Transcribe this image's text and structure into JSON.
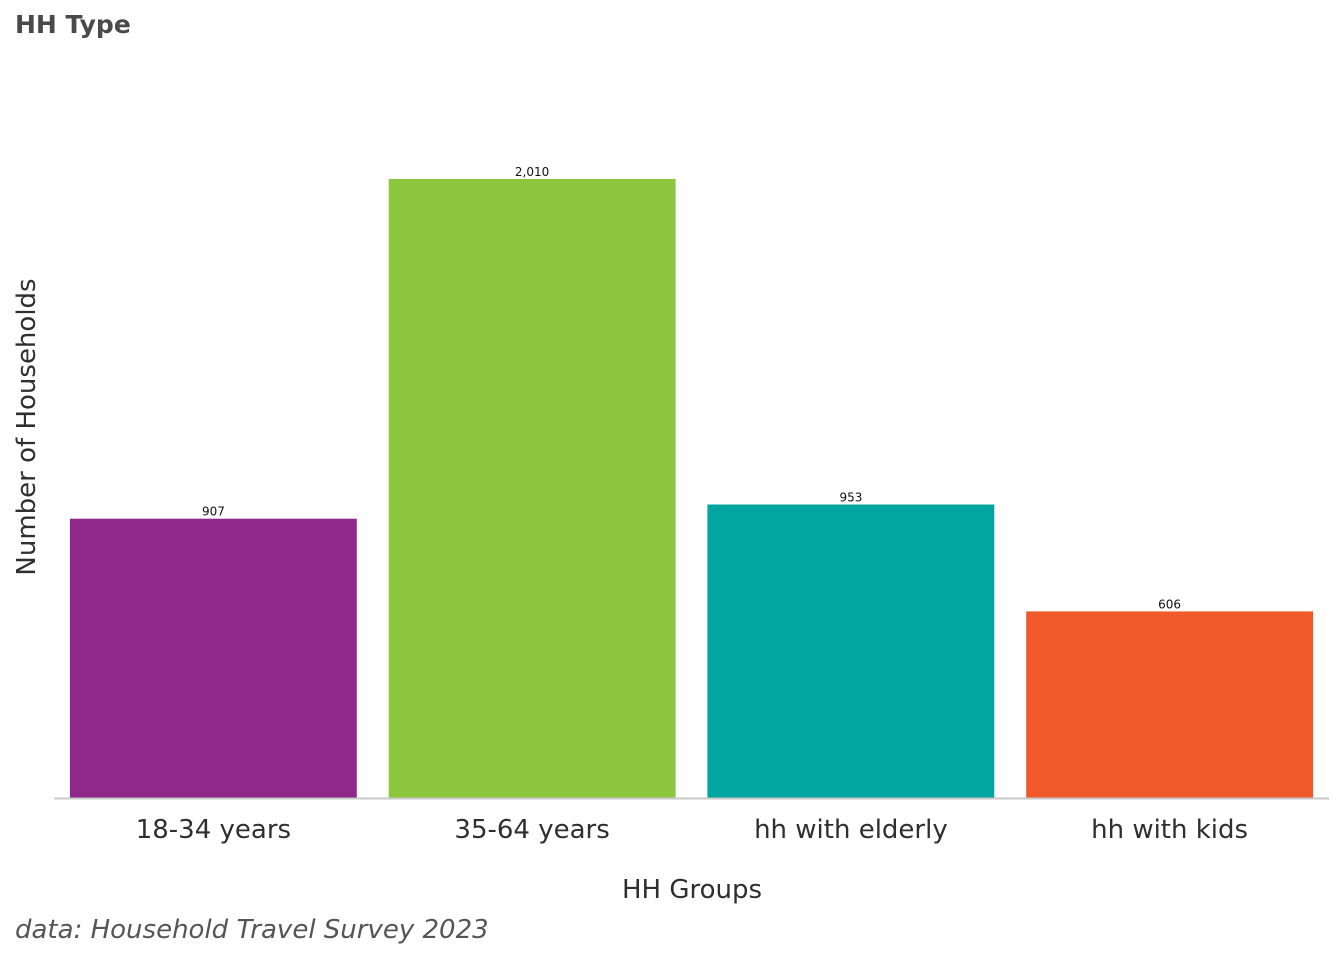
{
  "chart_data": {
    "type": "bar",
    "title": "HH Type",
    "xlabel": "HH Groups",
    "ylabel": "Number of Households",
    "categories": [
      "18-34 years",
      "35-64 years",
      "hh with elderly",
      "hh with kids"
    ],
    "values": [
      907,
      2010,
      953,
      606
    ],
    "value_labels": [
      "907",
      "2,010",
      "953",
      "606"
    ],
    "colors": [
      "#90278b",
      "#8dc63f",
      "#00a69f",
      "#f05a2b"
    ],
    "ylim": [
      0,
      2010
    ],
    "grid": false,
    "legend": "none",
    "caption": "data: Household Travel Survey 2023"
  }
}
